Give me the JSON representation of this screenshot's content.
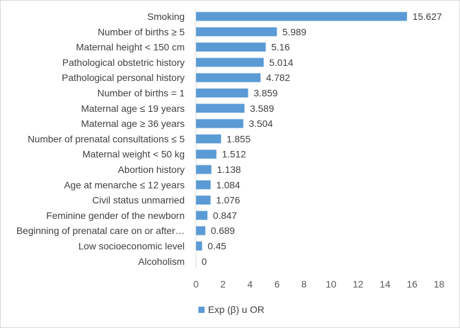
{
  "chart_data": {
    "type": "bar",
    "orientation": "horizontal",
    "categories": [
      "Smoking",
      "Number of births ≥ 5",
      "Maternal height < 150 cm",
      "Pathological obstetric history",
      "Pathological personal history",
      "Number of births = 1",
      "Maternal age ≤ 19 years",
      "Maternal age ≥ 36 years",
      "Number of prenatal consultations  ≤ 5",
      "Maternal weight < 50 kg",
      "Abortion history",
      "Age at menarche ≤ 12 years",
      "Civil status unmarried",
      "Feminine gender of the newborn",
      "Beginning of prenatal care on or after…",
      "Low socioeconomic level",
      "Alcoholism"
    ],
    "series": [
      {
        "name": "Exp (β) u OR",
        "values": [
          15.627,
          5.989,
          5.16,
          5.014,
          4.782,
          3.859,
          3.589,
          3.504,
          1.855,
          1.512,
          1.138,
          1.084,
          1.076,
          0.847,
          0.689,
          0.45,
          0
        ],
        "value_labels": [
          "15.627",
          "5.989",
          "5.16",
          "5.014",
          "4.782",
          "3.859",
          "3.589",
          "3.504",
          "1.855",
          "1.512",
          "1.138",
          "1.084",
          "1.076",
          "0.847",
          "0.689",
          "0.45",
          "0"
        ]
      }
    ],
    "xlim": [
      0,
      18
    ],
    "x_ticks": [
      "0",
      "2",
      "4",
      "6",
      "8",
      "10",
      "12",
      "14",
      "16",
      "18"
    ],
    "title": "",
    "xlabel": "",
    "ylabel": "",
    "grid": false,
    "legend_position": "bottom",
    "colors": {
      "bar": "#5b9bd5",
      "text": "#404040",
      "axis": "#d9d9d9"
    }
  }
}
